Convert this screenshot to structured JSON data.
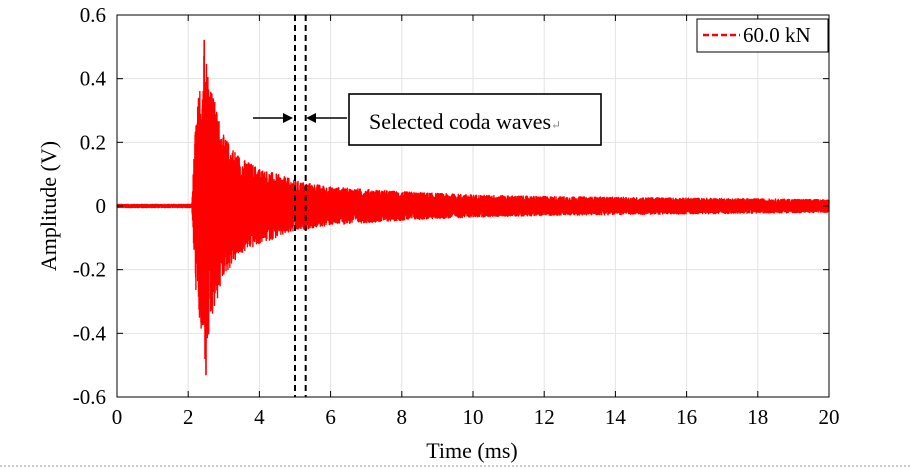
{
  "chart_data": {
    "type": "line",
    "xlabel": "Time (ms)",
    "ylabel": "Amplitude (V)",
    "xlim": [
      0,
      20
    ],
    "ylim": [
      -0.6,
      0.6
    ],
    "x_ticks": [
      "0",
      "2",
      "4",
      "6",
      "8",
      "10",
      "12",
      "14",
      "16",
      "18",
      "20"
    ],
    "y_ticks": [
      "0.6",
      "0.4",
      "0.2",
      "0",
      "-0.2",
      "-0.4",
      "-0.6"
    ],
    "grid": true,
    "legend_position": "top-right",
    "series": [
      {
        "name": "60.0 kN",
        "color": "#ff0000",
        "line_style": "dashed",
        "onset_ms": 2.1,
        "peak_positive": 0.52,
        "peak_negative": -0.53,
        "peak_time_ms": 2.45,
        "noise_level": 0.005,
        "envelope": [
          {
            "x": 0.0,
            "y": 0.005
          },
          {
            "x": 2.1,
            "y": 0.005
          },
          {
            "x": 2.2,
            "y": 0.25
          },
          {
            "x": 2.45,
            "y": 0.52
          },
          {
            "x": 2.7,
            "y": 0.35
          },
          {
            "x": 3.0,
            "y": 0.22
          },
          {
            "x": 3.5,
            "y": 0.15
          },
          {
            "x": 4.0,
            "y": 0.12
          },
          {
            "x": 5.0,
            "y": 0.08
          },
          {
            "x": 6.0,
            "y": 0.06
          },
          {
            "x": 8.0,
            "y": 0.045
          },
          {
            "x": 10.0,
            "y": 0.035
          },
          {
            "x": 12.0,
            "y": 0.03
          },
          {
            "x": 16.0,
            "y": 0.025
          },
          {
            "x": 20.0,
            "y": 0.02
          }
        ]
      }
    ],
    "selection_window": {
      "x_start": 5.0,
      "x_end": 5.3
    },
    "annotation": {
      "text": "Selected coda waves",
      "suffix_glyph": "↵"
    }
  }
}
